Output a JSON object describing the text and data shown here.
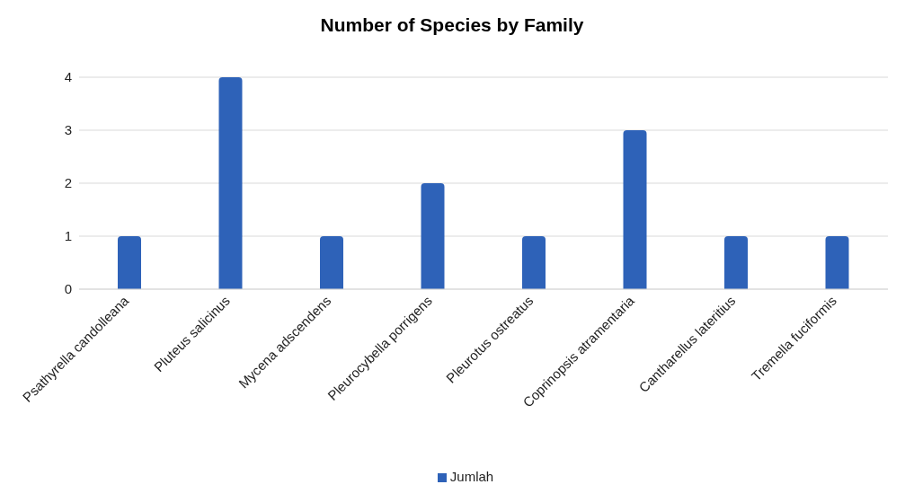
{
  "chart_data": {
    "type": "bar",
    "title": "Number of Species by Family",
    "categories": [
      "Psathyrella candolleana",
      "Pluteus salicinus",
      "Mycena adscendens",
      "Pleurocybella porrigens",
      "Pleurotus ostreatus",
      "Coprinopsis atramentaria",
      "Cantharellus lateritius",
      "Tremella fuciformis"
    ],
    "series": [
      {
        "name": "Jumlah",
        "color": "#2e62b8",
        "values": [
          1,
          4,
          1,
          2,
          1,
          3,
          1,
          1
        ]
      }
    ],
    "ylim": [
      0,
      4
    ],
    "yticks": [
      0,
      1,
      2,
      3,
      4
    ],
    "grid": "y",
    "legend": "bottom"
  }
}
